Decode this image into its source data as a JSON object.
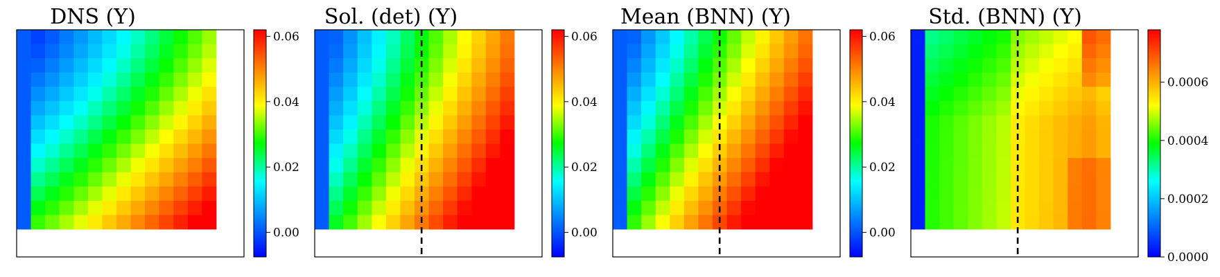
{
  "colors": {
    "colormap": [
      "#0000ff",
      "#0080ff",
      "#00ffff",
      "#00ff00",
      "#ffff00",
      "#ff8000",
      "#ff0000"
    ],
    "frame": "#000000",
    "divider_line": "#000000"
  },
  "chart_data": [
    {
      "type": "heatmap",
      "title": "DNS (Y)",
      "grid_rows": 14,
      "grid_cols": 14,
      "colorbar": {
        "range": [
          -0.0075,
          0.062
        ],
        "ticks": [
          "0.00",
          "0.02",
          "0.04",
          "0.06"
        ],
        "tick_values": [
          0.0,
          0.02,
          0.04,
          0.06
        ]
      },
      "dashed_line": false
    },
    {
      "type": "heatmap",
      "title": "Sol. (det) (Y)",
      "grid_rows": 14,
      "grid_cols": 14,
      "colorbar": {
        "range": [
          -0.0075,
          0.062
        ],
        "ticks": [
          "0.00",
          "0.02",
          "0.04",
          "0.06"
        ],
        "tick_values": [
          0.0,
          0.02,
          0.04,
          0.06
        ]
      },
      "dashed_line": true
    },
    {
      "type": "heatmap",
      "title": "Mean (BNN) (Y)",
      "grid_rows": 14,
      "grid_cols": 14,
      "colorbar": {
        "range": [
          -0.0075,
          0.062
        ],
        "ticks": [
          "0.00",
          "0.02",
          "0.04",
          "0.06"
        ],
        "tick_values": [
          0.0,
          0.02,
          0.04,
          0.06
        ]
      },
      "dashed_line": true
    },
    {
      "type": "heatmap",
      "title": "Std. (BNN) (Y)",
      "grid_rows": 14,
      "grid_cols": 14,
      "colorbar": {
        "range": [
          0.0,
          0.00078
        ],
        "ticks": [
          "0.0000",
          "0.0002",
          "0.0004",
          "0.0006"
        ],
        "tick_values": [
          0.0,
          0.0002,
          0.0004,
          0.0006
        ]
      },
      "dashed_line": true
    }
  ]
}
